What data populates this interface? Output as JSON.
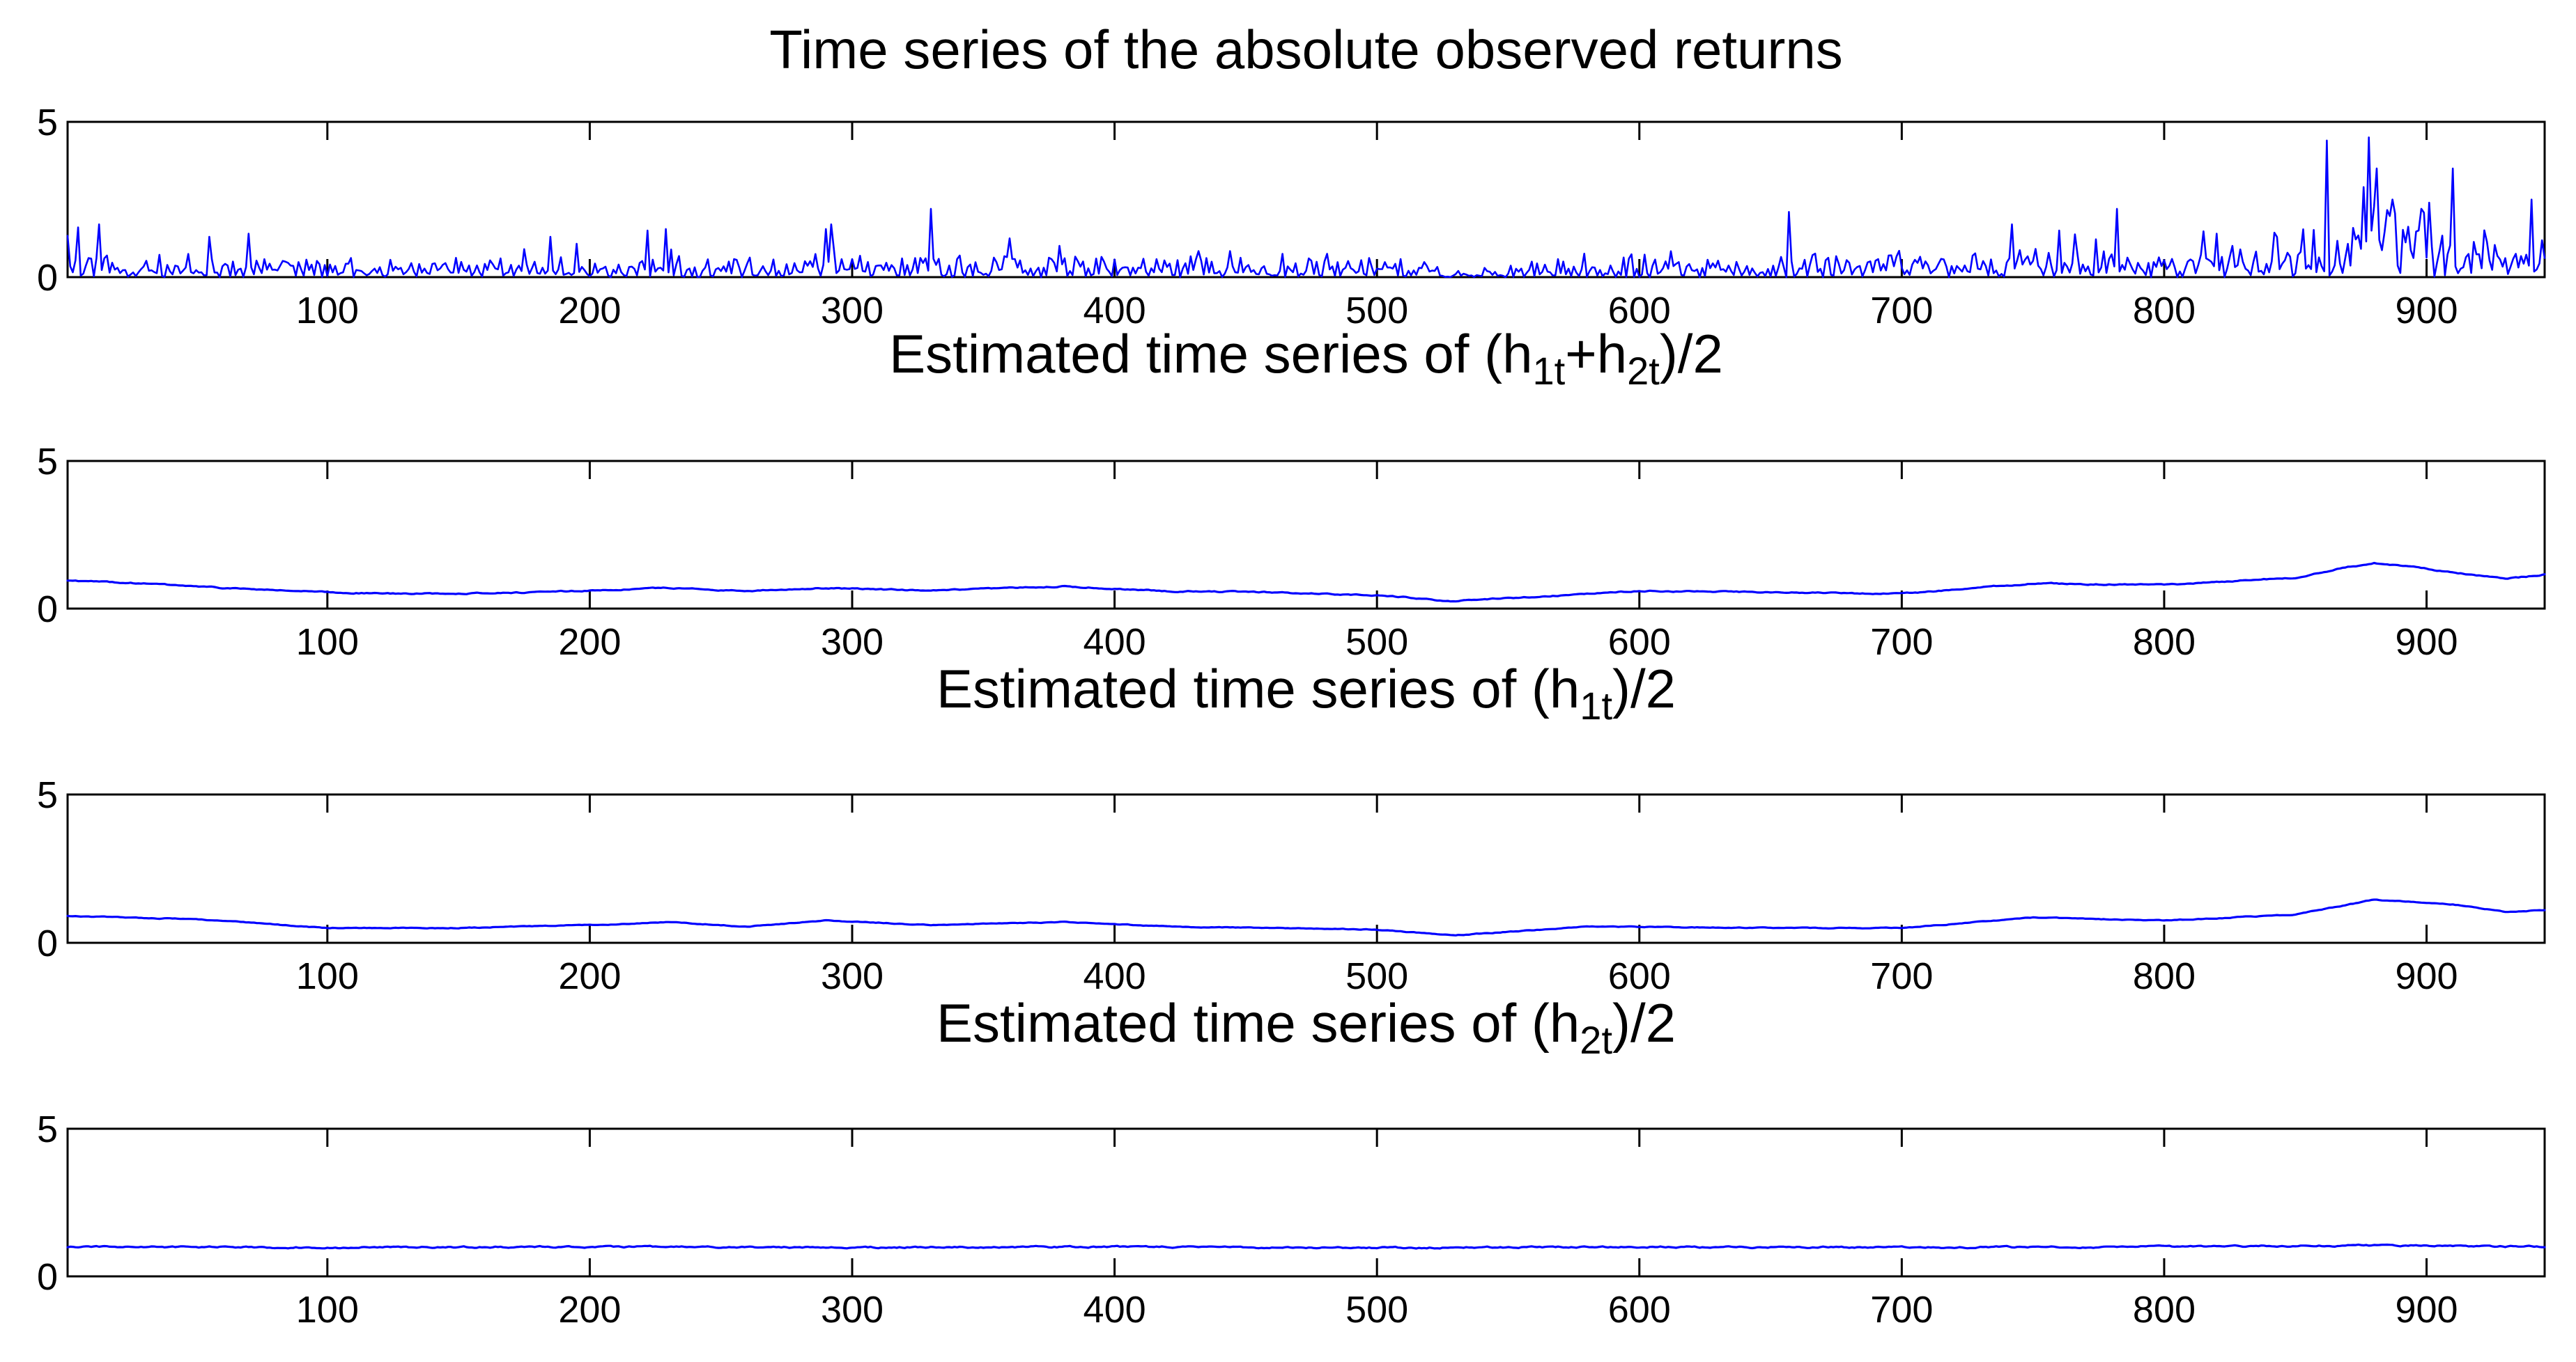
{
  "chart_data": [
    {
      "type": "line",
      "title": "Time series of the absolute observed returns",
      "title_parts": [],
      "xlim": [
        1,
        945
      ],
      "ylim": [
        0,
        5
      ],
      "xticks": [
        100,
        200,
        300,
        400,
        500,
        600,
        700,
        800,
        900
      ],
      "yticks": [
        0,
        5
      ],
      "color": "#0000ff",
      "series": [
        {
          "kind": "abs_returns",
          "base_level": 0.45,
          "noise_scale": 0.35,
          "profile": [
            [
              1,
              0.6
            ],
            [
              100,
              0.4
            ],
            [
              200,
              0.45
            ],
            [
              300,
              0.55
            ],
            [
              400,
              0.5
            ],
            [
              500,
              0.35
            ],
            [
              530,
              0.2
            ],
            [
              600,
              0.45
            ],
            [
              700,
              0.45
            ],
            [
              750,
              0.6
            ],
            [
              800,
              0.6
            ],
            [
              850,
              0.8
            ],
            [
              880,
              1.3
            ],
            [
              920,
              0.9
            ],
            [
              945,
              0.8
            ]
          ],
          "spikes": [
            [
              5,
              1.6
            ],
            [
              13,
              1.7
            ],
            [
              55,
              1.3
            ],
            [
              70,
              1.4
            ],
            [
              185,
              1.3
            ],
            [
              222,
              1.5
            ],
            [
              229,
              1.55
            ],
            [
              290,
              1.55
            ],
            [
              292,
              1.7
            ],
            [
              330,
              2.2
            ],
            [
              657,
              2.1
            ],
            [
              742,
              1.7
            ],
            [
              760,
              1.5
            ],
            [
              782,
              2.2
            ],
            [
              820,
              1.4
            ],
            [
              862,
              4.4
            ],
            [
              876,
              2.9
            ],
            [
              878,
              4.5
            ],
            [
              881,
              3.5
            ],
            [
              887,
              2.5
            ],
            [
              898,
              2.2
            ],
            [
              901,
              2.4
            ],
            [
              910,
              3.5
            ],
            [
              940,
              2.5
            ]
          ]
        }
      ]
    },
    {
      "type": "line",
      "title": "",
      "title_parts": [
        {
          "t": "Estimated time series of (h"
        },
        {
          "t": "1t",
          "sub": true
        },
        {
          "t": "+h"
        },
        {
          "t": "2t",
          "sub": true
        },
        {
          "t": ")/2"
        }
      ],
      "xlim": [
        1,
        945
      ],
      "ylim": [
        0,
        5
      ],
      "xticks": [
        100,
        200,
        300,
        400,
        500,
        600,
        700,
        800,
        900
      ],
      "yticks": [
        0,
        5
      ],
      "color": "#0000ff",
      "series": [
        {
          "kind": "smooth",
          "noise_scale": 0.03,
          "profile": [
            [
              1,
              0.95
            ],
            [
              30,
              0.85
            ],
            [
              60,
              0.7
            ],
            [
              100,
              0.55
            ],
            [
              130,
              0.5
            ],
            [
              180,
              0.55
            ],
            [
              230,
              0.7
            ],
            [
              260,
              0.6
            ],
            [
              290,
              0.7
            ],
            [
              330,
              0.6
            ],
            [
              380,
              0.75
            ],
            [
              420,
              0.6
            ],
            [
              460,
              0.55
            ],
            [
              500,
              0.45
            ],
            [
              530,
              0.25
            ],
            [
              570,
              0.45
            ],
            [
              600,
              0.6
            ],
            [
              650,
              0.55
            ],
            [
              700,
              0.5
            ],
            [
              750,
              0.85
            ],
            [
              800,
              0.8
            ],
            [
              850,
              1.05
            ],
            [
              870,
              1.4
            ],
            [
              880,
              1.55
            ],
            [
              900,
              1.35
            ],
            [
              930,
              1.0
            ],
            [
              945,
              1.15
            ]
          ]
        }
      ]
    },
    {
      "type": "line",
      "title": "",
      "title_parts": [
        {
          "t": "Estimated time series of (h"
        },
        {
          "t": "1t",
          "sub": true
        },
        {
          "t": ")/2"
        }
      ],
      "xlim": [
        1,
        945
      ],
      "ylim": [
        0,
        5
      ],
      "xticks": [
        100,
        200,
        300,
        400,
        500,
        600,
        700,
        800,
        900
      ],
      "yticks": [
        0,
        5
      ],
      "color": "#0000ff",
      "series": [
        {
          "kind": "smooth",
          "noise_scale": 0.02,
          "profile": [
            [
              1,
              0.9
            ],
            [
              50,
              0.8
            ],
            [
              100,
              0.5
            ],
            [
              150,
              0.5
            ],
            [
              200,
              0.6
            ],
            [
              230,
              0.7
            ],
            [
              260,
              0.55
            ],
            [
              290,
              0.75
            ],
            [
              330,
              0.6
            ],
            [
              380,
              0.7
            ],
            [
              420,
              0.55
            ],
            [
              500,
              0.45
            ],
            [
              530,
              0.25
            ],
            [
              580,
              0.55
            ],
            [
              650,
              0.5
            ],
            [
              700,
              0.5
            ],
            [
              750,
              0.85
            ],
            [
              800,
              0.75
            ],
            [
              850,
              0.95
            ],
            [
              880,
              1.45
            ],
            [
              910,
              1.3
            ],
            [
              930,
              1.05
            ],
            [
              945,
              1.1
            ]
          ]
        }
      ]
    },
    {
      "type": "line",
      "title": "",
      "title_parts": [
        {
          "t": "Estimated time series of (h"
        },
        {
          "t": "2t",
          "sub": true
        },
        {
          "t": ")/2"
        }
      ],
      "xlim": [
        1,
        945
      ],
      "ylim": [
        0,
        5
      ],
      "xticks": [
        100,
        200,
        300,
        400,
        500,
        600,
        700,
        800,
        900
      ],
      "yticks": [
        0,
        5
      ],
      "color": "#0000ff",
      "series": [
        {
          "kind": "smooth",
          "noise_scale": 0.04,
          "profile": [
            [
              1,
              1.0
            ],
            [
              100,
              0.98
            ],
            [
              200,
              1.0
            ],
            [
              300,
              0.98
            ],
            [
              400,
              1.0
            ],
            [
              500,
              0.97
            ],
            [
              600,
              1.0
            ],
            [
              700,
              0.98
            ],
            [
              800,
              1.0
            ],
            [
              880,
              1.05
            ],
            [
              945,
              1.0
            ]
          ]
        }
      ]
    }
  ]
}
